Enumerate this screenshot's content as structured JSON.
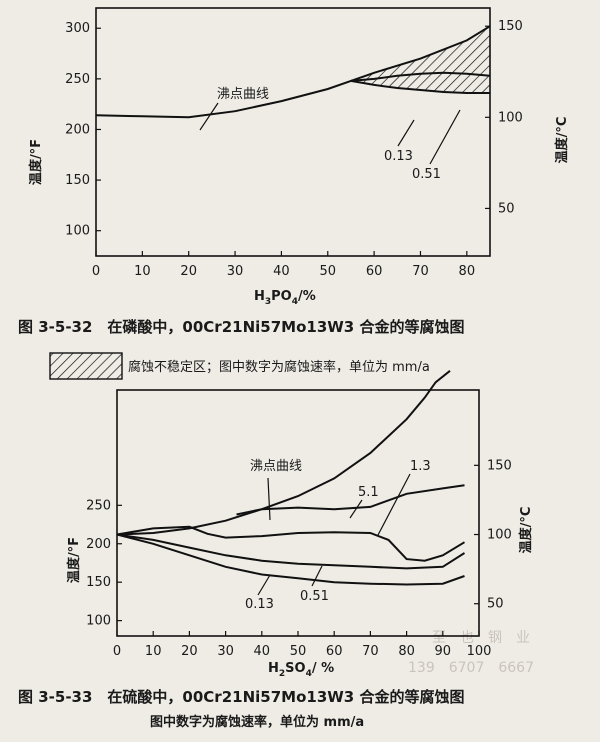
{
  "top": {
    "caption": "图 3-5-32　在磷酸中，00Cr21Ni57Mo13W3 合金的等腐蚀图",
    "xlabel_main": "H",
    "xlabel_sub1": "3",
    "xlabel_mid": "PO",
    "xlabel_sub2": "4",
    "xlabel_tail": "/%",
    "ylabel_left": "温度/°F",
    "ylabel_right": "温度/°C",
    "boiling_label": "沸点曲线",
    "rate_labels": [
      "0.13",
      "0.51"
    ]
  },
  "legend": {
    "text": "腐蚀不稳定区；图中数字为腐蚀速率，单位为 mm/a"
  },
  "bottom": {
    "caption": "图 3-5-33　在硫酸中，00Cr21Ni57Mo13W3 合金的等腐蚀图",
    "subcaption": "图中数字为腐蚀速率，单位为 mm/a",
    "xlabel_main": "H",
    "xlabel_sub1": "2",
    "xlabel_mid": "SO",
    "xlabel_sub2": "4",
    "xlabel_tail": "/ %",
    "ylabel_left": "温度/°F",
    "ylabel_right": "温度/°C",
    "boiling_label": "沸点曲线",
    "rate_labels": [
      "5.1",
      "1.3",
      "0.13",
      "0.51"
    ]
  },
  "watermark": {
    "line1": "至　也　钢　业",
    "line2": "139　6707　6667"
  },
  "chart_data": [
    {
      "type": "line",
      "title": "图 3-5-32　在磷酸中，00Cr21Ni57Mo13W3 合金的等腐蚀图",
      "xlabel": "H3PO4/%",
      "ylabel": "温度/°F",
      "ylabel_right": "温度/°C",
      "xlim": [
        0,
        85
      ],
      "ylim": [
        75,
        320
      ],
      "xticks": [
        0,
        10,
        20,
        30,
        40,
        50,
        60,
        70,
        80
      ],
      "yticks_left": [
        100,
        150,
        200,
        250,
        300
      ],
      "yticks_right": [
        50,
        100,
        150
      ],
      "series": [
        {
          "name": "沸点曲线",
          "x": [
            0,
            10,
            20,
            30,
            40,
            50,
            55,
            60,
            70,
            80,
            85
          ],
          "y": [
            214,
            213,
            212,
            218,
            228,
            240,
            248,
            256,
            270,
            288,
            302
          ]
        },
        {
          "name": "0.13",
          "x": [
            55,
            60,
            65,
            70,
            75,
            80,
            85
          ],
          "y": [
            248,
            244,
            241,
            239,
            237,
            236,
            236
          ]
        },
        {
          "name": "0.51",
          "x": [
            55,
            60,
            65,
            70,
            75,
            80,
            85
          ],
          "y": [
            248,
            250,
            253,
            255,
            256,
            255,
            253
          ]
        }
      ],
      "hatched_region": "腐蚀不稳定区"
    },
    {
      "type": "line",
      "title": "图 3-5-33　在硫酸中，00Cr21Ni57Mo13W3 合金的等腐蚀图",
      "xlabel": "H2SO4/ %",
      "ylabel": "温度/°F",
      "ylabel_right": "温度/°C",
      "xlim": [
        0,
        100
      ],
      "ylim": [
        80,
        400
      ],
      "xticks": [
        0,
        10,
        20,
        30,
        40,
        50,
        60,
        70,
        80,
        90,
        100
      ],
      "yticks_left": [
        100,
        150,
        200,
        250
      ],
      "yticks_right": [
        50,
        100,
        150
      ],
      "series": [
        {
          "name": "沸点曲线",
          "x": [
            0,
            10,
            20,
            30,
            40,
            50,
            60,
            70,
            80,
            85,
            88,
            92
          ],
          "y": [
            212,
            214,
            220,
            230,
            245,
            262,
            285,
            318,
            362,
            390,
            410,
            425
          ]
        },
        {
          "name": "5.1",
          "x": [
            33,
            40,
            50,
            60,
            70,
            80,
            90,
            96
          ],
          "y": [
            238,
            245,
            247,
            245,
            248,
            265,
            272,
            276
          ]
        },
        {
          "name": "1.3",
          "x": [
            0,
            10,
            20,
            25,
            30,
            40,
            50,
            60,
            70,
            75,
            78,
            80,
            85,
            90,
            96
          ],
          "y": [
            212,
            220,
            222,
            213,
            208,
            210,
            214,
            215,
            214,
            205,
            190,
            180,
            178,
            185,
            202
          ]
        },
        {
          "name": "0.51",
          "x": [
            0,
            10,
            20,
            30,
            40,
            50,
            60,
            70,
            80,
            90,
            96
          ],
          "y": [
            212,
            205,
            195,
            185,
            178,
            174,
            172,
            170,
            168,
            170,
            188
          ]
        },
        {
          "name": "0.13",
          "x": [
            0,
            10,
            20,
            30,
            40,
            50,
            60,
            70,
            80,
            90,
            96
          ],
          "y": [
            212,
            200,
            185,
            170,
            160,
            155,
            150,
            148,
            147,
            148,
            158
          ]
        }
      ]
    }
  ]
}
